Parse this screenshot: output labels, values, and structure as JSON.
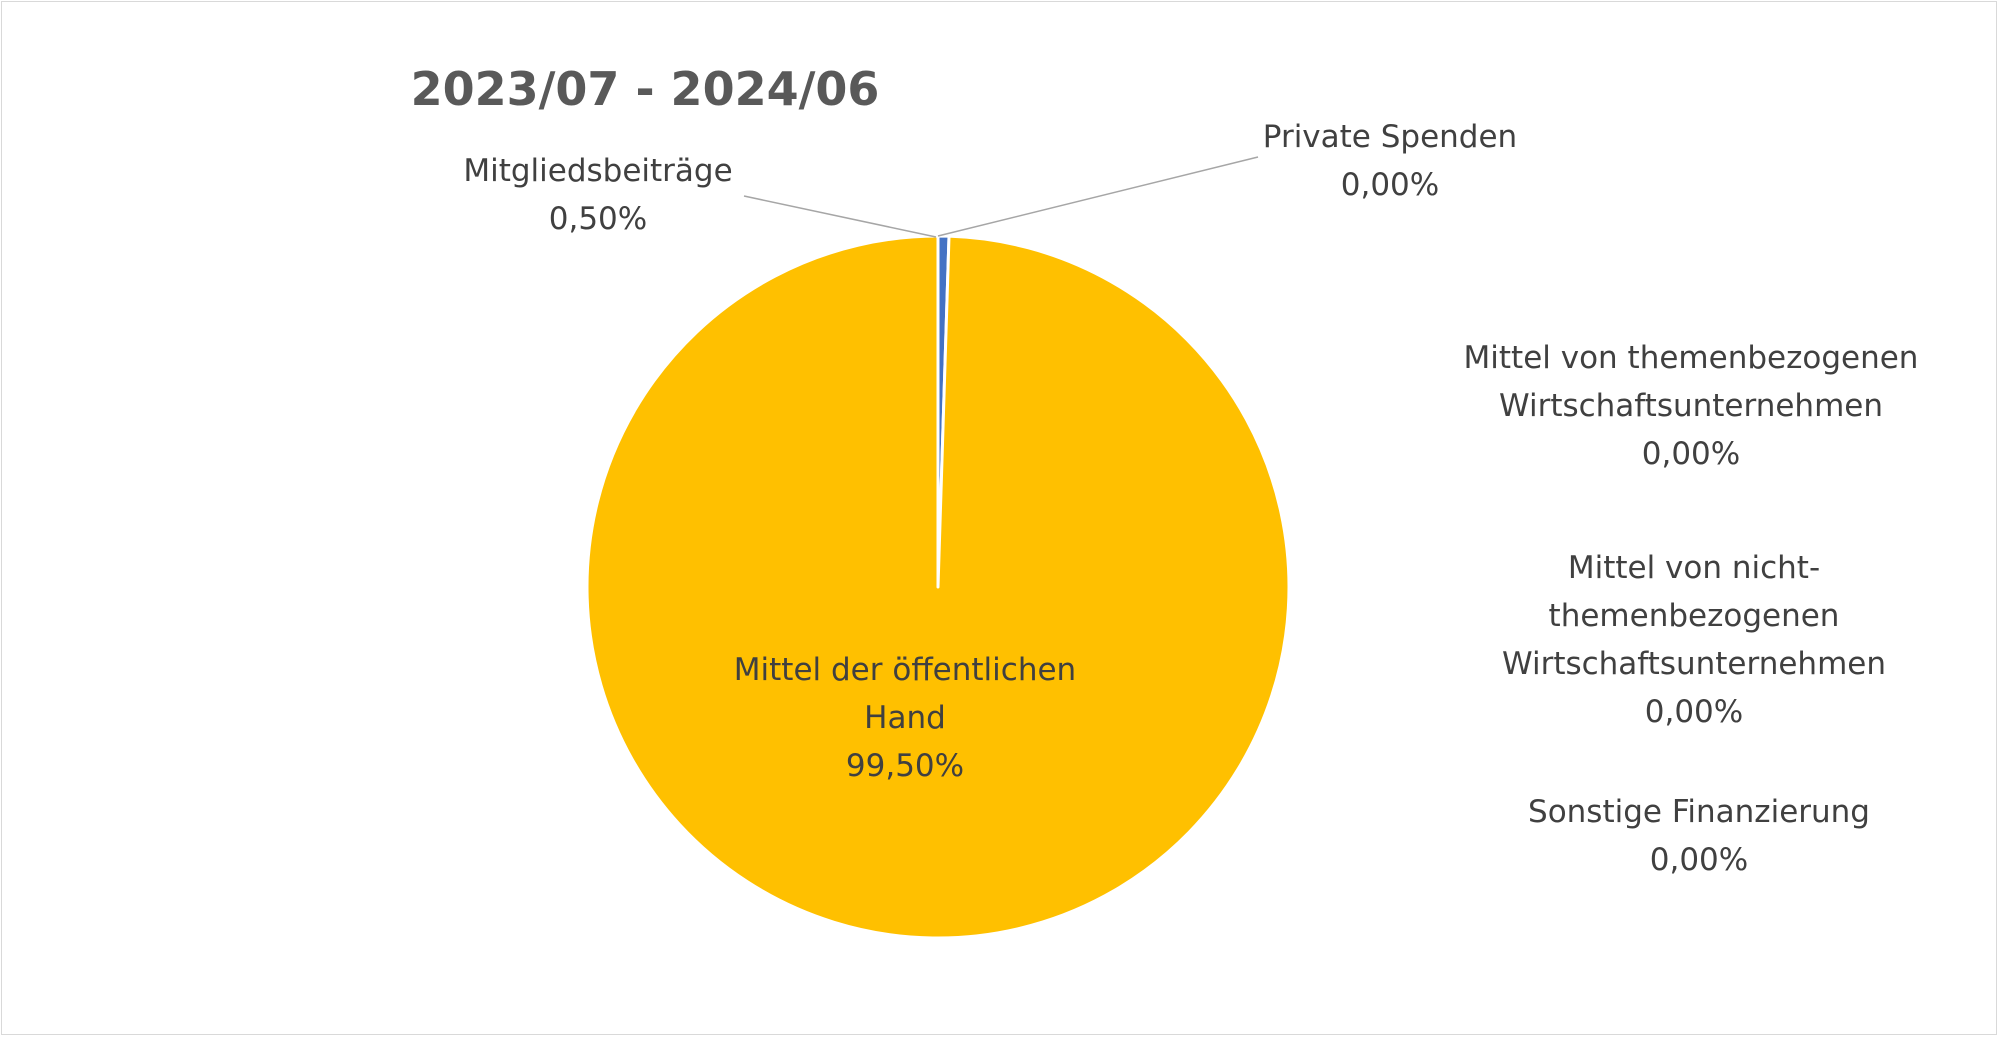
{
  "chart_data": {
    "type": "pie",
    "title": "2023/07 - 2024/06",
    "slices": [
      {
        "label_lines": [
          "Mittel der öffentlichen",
          "Hand"
        ],
        "value_text": "99,50%",
        "value": 99.5,
        "color": "#ffc000",
        "label_pos": "inside"
      },
      {
        "label_lines": [
          "Mitgliedsbeiträge"
        ],
        "value_text": "0,50%",
        "value": 0.5,
        "color": "#4472c4",
        "label_pos": "outside-left"
      },
      {
        "label_lines": [
          "Private Spenden"
        ],
        "value_text": "0,00%",
        "value": 0.0,
        "color": "#ed7d31",
        "label_pos": "outside-right"
      },
      {
        "label_lines": [
          "Mittel von themenbezogenen",
          "Wirtschaftsunternehmen"
        ],
        "value_text": "0,00%",
        "value": 0.0,
        "color": "#a5a5a5",
        "label_pos": "right"
      },
      {
        "label_lines": [
          "Mittel von nicht-",
          "themenbezogenen",
          "Wirtschaftsunternehmen"
        ],
        "value_text": "0,00%",
        "value": 0.0,
        "color": "#5b9bd5",
        "label_pos": "right"
      },
      {
        "label_lines": [
          "Sonstige Finanzierung"
        ],
        "value_text": "0,00%",
        "value": 0.0,
        "color": "#70ad47",
        "label_pos": "right"
      }
    ],
    "legend": "none",
    "start_angle": "top, clockwise"
  }
}
